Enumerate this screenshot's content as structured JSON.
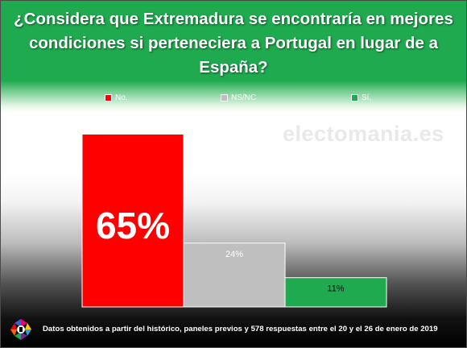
{
  "title": "¿Considera que Extremadura se encontraría en mejores condiciones si perteneciera a Portugal en lugar de a España?",
  "watermark": "electomania.es",
  "footer": {
    "note": "Datos obtenidos a partir del histórico, paneles previos y 578 respuestas entre el 20 y el 26 de enero de 2019"
  },
  "colors": {
    "header": "#1faa4f",
    "no": "#ff0000",
    "nsnc": "#bfbfbf",
    "si": "#1faa4f"
  },
  "chart_data": {
    "type": "bar",
    "categories": [
      "No.",
      "NS/NC",
      "Sí."
    ],
    "values": [
      65,
      24,
      11
    ],
    "data_labels": [
      "65%",
      "24%",
      "11%"
    ],
    "ylim": [
      0,
      70
    ],
    "legend": [
      "No.",
      "NS/NC",
      "Sí."
    ],
    "legend_position": "top",
    "grid": false
  }
}
